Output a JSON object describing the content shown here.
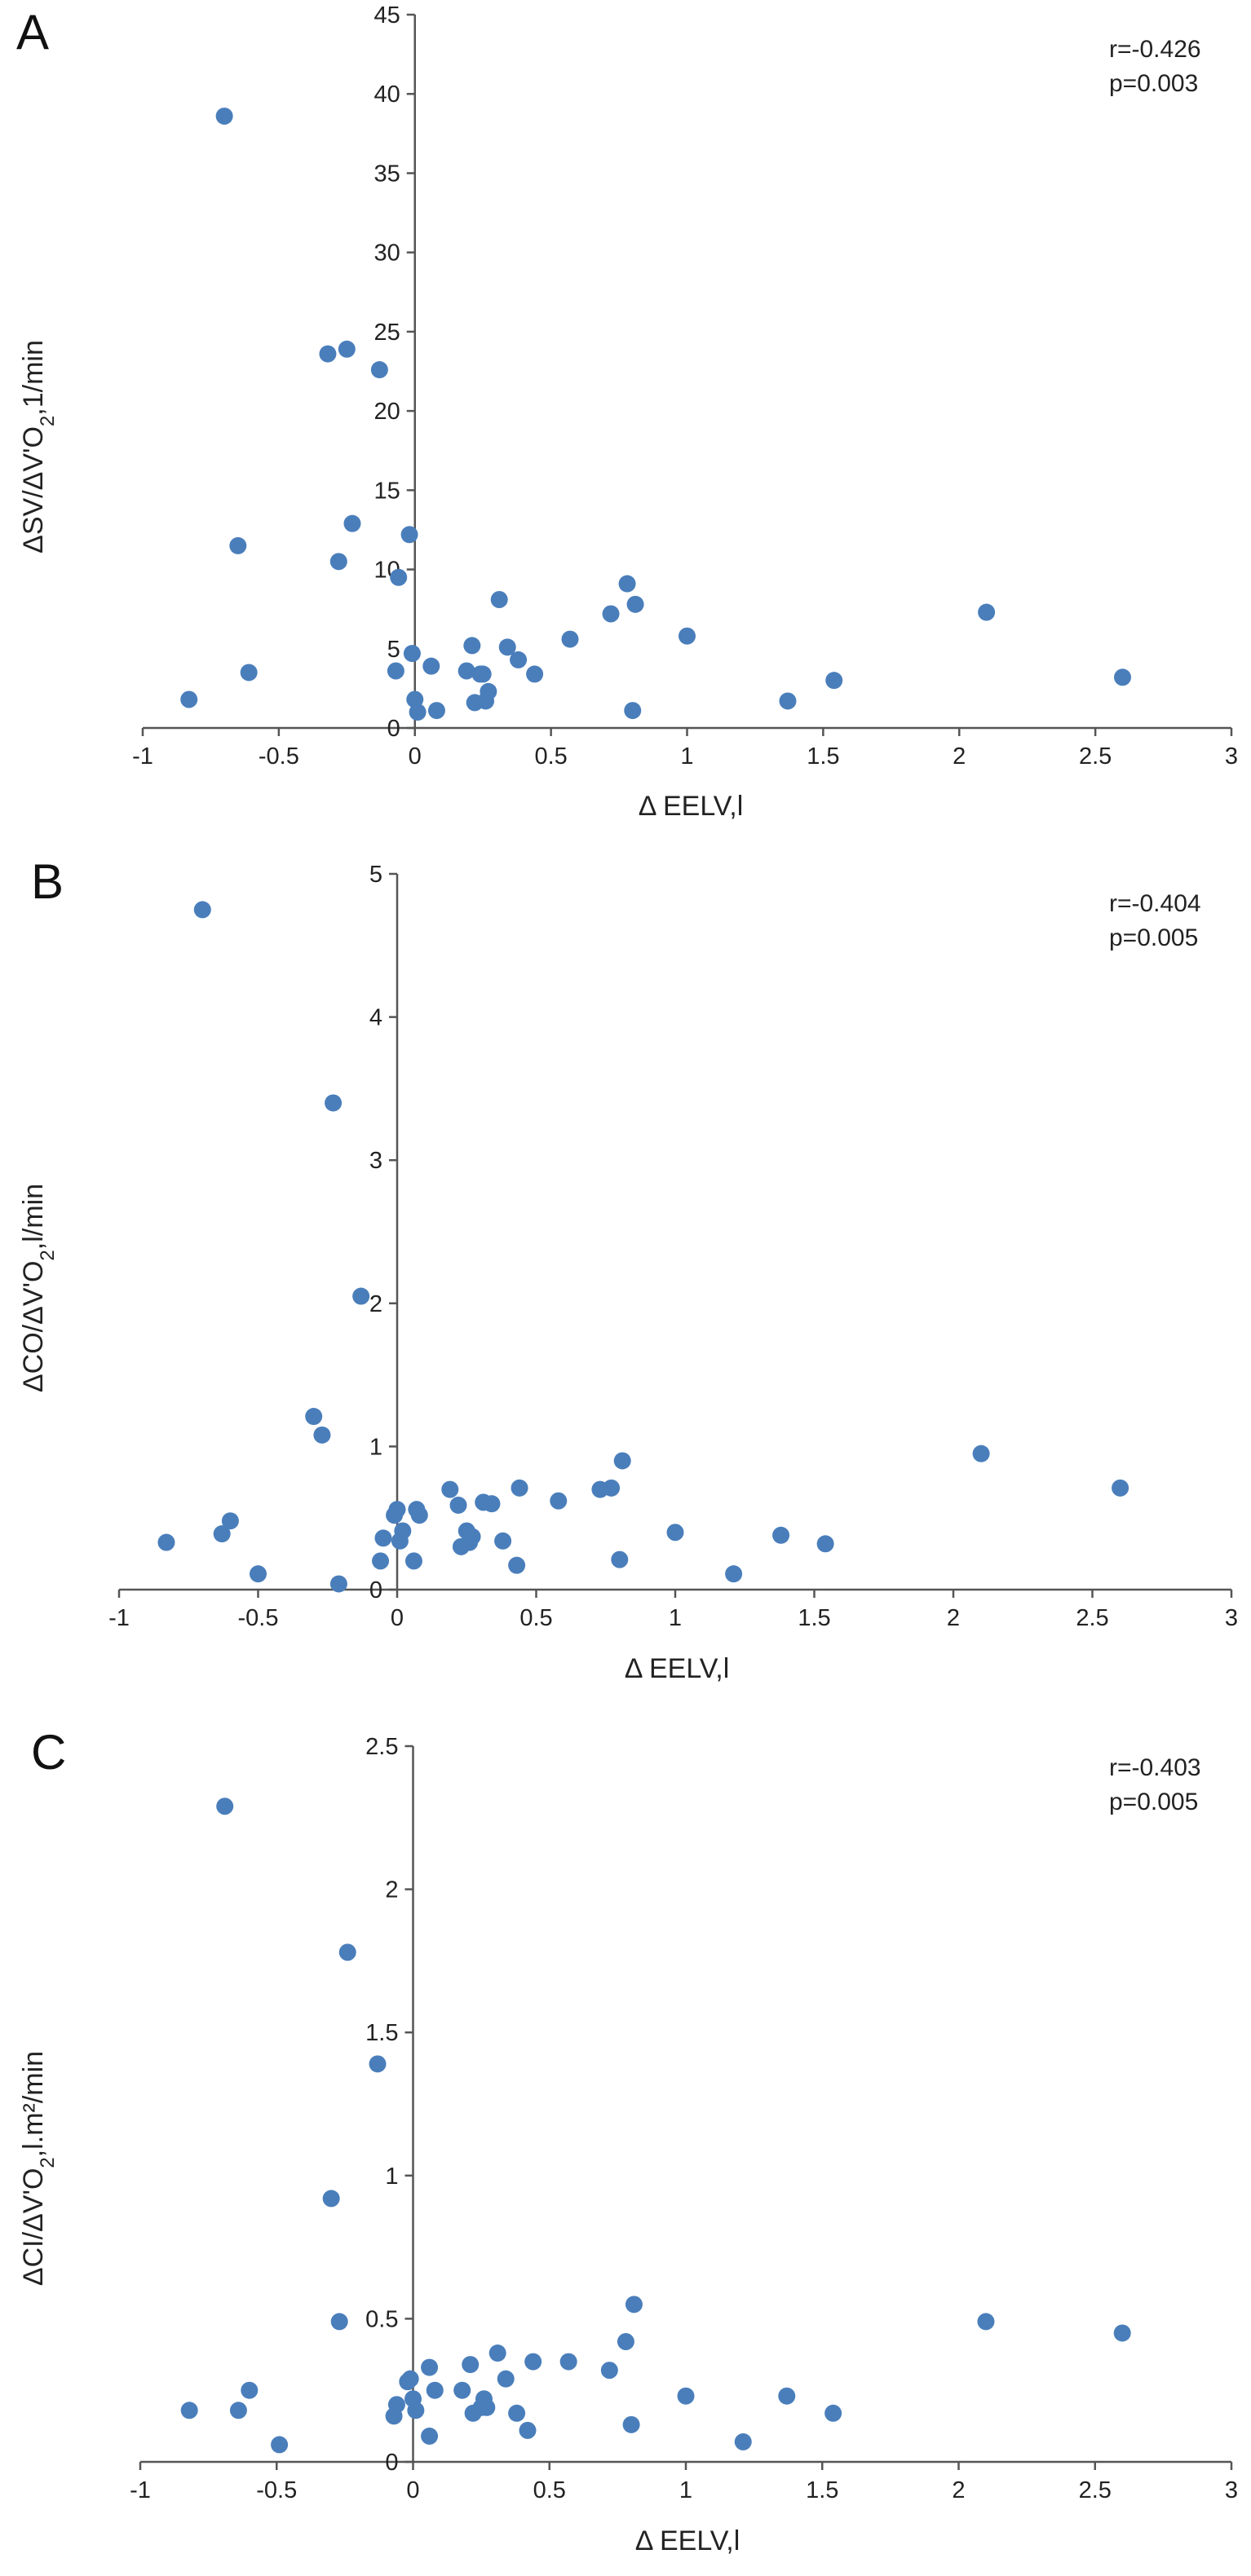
{
  "colors": {
    "marker": "#4a7ebb",
    "axis": "#555555",
    "text": "#222222"
  },
  "chart_data": [
    {
      "type": "scatter",
      "panel_label": "A",
      "xlabel": "Δ EELV,l",
      "ylabel_main": "ΔSV/ΔV'O",
      "ylabel_sub": "2",
      "ylabel_tail": ",1/min",
      "annotation_r": "r=-0.426",
      "annotation_p": "p=0.003",
      "xlim": [
        -1,
        3
      ],
      "ylim": [
        0,
        45
      ],
      "xticks": [
        "-1",
        "-0.5",
        "0",
        "0.5",
        "1",
        "1.5",
        "2",
        "2.5",
        "3"
      ],
      "yticks": [
        "0",
        "5",
        "10",
        "15",
        "20",
        "25",
        "30",
        "35",
        "40",
        "45"
      ],
      "points": [
        [
          -0.83,
          1.8
        ],
        [
          -0.7,
          38.6
        ],
        [
          -0.65,
          11.5
        ],
        [
          -0.61,
          3.5
        ],
        [
          -0.32,
          23.6
        ],
        [
          -0.25,
          23.9
        ],
        [
          -0.28,
          10.5
        ],
        [
          -0.23,
          12.9
        ],
        [
          -0.13,
          22.6
        ],
        [
          -0.07,
          3.6
        ],
        [
          -0.06,
          9.5
        ],
        [
          -0.02,
          12.2
        ],
        [
          -0.01,
          4.7
        ],
        [
          0.0,
          1.8
        ],
        [
          0.01,
          1.0
        ],
        [
          0.06,
          3.9
        ],
        [
          0.08,
          1.1
        ],
        [
          0.19,
          3.6
        ],
        [
          0.21,
          5.2
        ],
        [
          0.22,
          1.6
        ],
        [
          0.24,
          3.4
        ],
        [
          0.25,
          3.4
        ],
        [
          0.26,
          1.7
        ],
        [
          0.27,
          2.3
        ],
        [
          0.31,
          8.1
        ],
        [
          0.34,
          5.1
        ],
        [
          0.38,
          4.3
        ],
        [
          0.44,
          3.4
        ],
        [
          0.57,
          5.6
        ],
        [
          0.72,
          7.2
        ],
        [
          0.78,
          9.1
        ],
        [
          0.8,
          1.1
        ],
        [
          0.81,
          7.8
        ],
        [
          1.0,
          5.8
        ],
        [
          1.37,
          1.7
        ],
        [
          1.54,
          3.0
        ],
        [
          2.1,
          7.3
        ],
        [
          2.6,
          3.2
        ]
      ]
    },
    {
      "type": "scatter",
      "panel_label": "B",
      "xlabel": "Δ EELV,l",
      "ylabel_main": "ΔCO/ΔV'O",
      "ylabel_sub": "2",
      "ylabel_tail": ",l/min",
      "annotation_r": "r=-0.404",
      "annotation_p": "p=0.005",
      "xlim": [
        -1,
        3
      ],
      "ylim": [
        0,
        5
      ],
      "xticks": [
        "-1",
        "-0.5",
        "0",
        "0.5",
        "1",
        "1.5",
        "2",
        "2.5",
        "3"
      ],
      "yticks": [
        "0",
        "1",
        "2",
        "3",
        "4",
        "5"
      ],
      "points": [
        [
          -0.83,
          0.33
        ],
        [
          -0.7,
          4.75
        ],
        [
          -0.63,
          0.39
        ],
        [
          -0.6,
          0.48
        ],
        [
          -0.5,
          0.11
        ],
        [
          -0.3,
          1.21
        ],
        [
          -0.27,
          1.08
        ],
        [
          -0.23,
          3.4
        ],
        [
          -0.21,
          0.04
        ],
        [
          -0.13,
          2.05
        ],
        [
          -0.06,
          0.2
        ],
        [
          -0.05,
          0.36
        ],
        [
          -0.01,
          0.52
        ],
        [
          0.0,
          0.56
        ],
        [
          0.01,
          0.34
        ],
        [
          0.02,
          0.41
        ],
        [
          0.06,
          0.2
        ],
        [
          0.07,
          0.56
        ],
        [
          0.08,
          0.52
        ],
        [
          0.19,
          0.7
        ],
        [
          0.22,
          0.59
        ],
        [
          0.23,
          0.3
        ],
        [
          0.25,
          0.41
        ],
        [
          0.26,
          0.33
        ],
        [
          0.27,
          0.37
        ],
        [
          0.31,
          0.61
        ],
        [
          0.34,
          0.6
        ],
        [
          0.38,
          0.34
        ],
        [
          0.43,
          0.17
        ],
        [
          0.44,
          0.71
        ],
        [
          0.58,
          0.62
        ],
        [
          0.73,
          0.7
        ],
        [
          0.77,
          0.71
        ],
        [
          0.8,
          0.21
        ],
        [
          0.81,
          0.9
        ],
        [
          1.0,
          0.4
        ],
        [
          1.21,
          0.11
        ],
        [
          1.38,
          0.38
        ],
        [
          1.54,
          0.32
        ],
        [
          2.1,
          0.95
        ],
        [
          2.6,
          0.71
        ]
      ]
    },
    {
      "type": "scatter",
      "panel_label": "C",
      "xlabel": "Δ EELV,l",
      "ylabel_main": "ΔCI/ΔV'O",
      "ylabel_sub": "2",
      "ylabel_tail": ",l.m²/min",
      "annotation_r": "r=-0.403",
      "annotation_p": "p=0.005",
      "xlim": [
        -1,
        3
      ],
      "ylim": [
        0,
        2.5
      ],
      "xticks": [
        "-1",
        "-0.5",
        "0",
        "0.5",
        "1",
        "1.5",
        "2",
        "2.5",
        "3"
      ],
      "yticks": [
        "0",
        "0.5",
        "1",
        "1.5",
        "2",
        "2.5"
      ],
      "points": [
        [
          -0.82,
          0.18
        ],
        [
          -0.69,
          2.29
        ],
        [
          -0.64,
          0.18
        ],
        [
          -0.6,
          0.25
        ],
        [
          -0.49,
          0.06
        ],
        [
          -0.3,
          0.92
        ],
        [
          -0.27,
          0.49
        ],
        [
          -0.24,
          1.78
        ],
        [
          -0.13,
          1.39
        ],
        [
          -0.07,
          0.16
        ],
        [
          -0.06,
          0.2
        ],
        [
          -0.02,
          0.28
        ],
        [
          -0.01,
          0.29
        ],
        [
          0.0,
          0.22
        ],
        [
          0.01,
          0.18
        ],
        [
          0.06,
          0.33
        ],
        [
          0.06,
          0.09
        ],
        [
          0.08,
          0.25
        ],
        [
          0.18,
          0.25
        ],
        [
          0.21,
          0.34
        ],
        [
          0.22,
          0.17
        ],
        [
          0.25,
          0.19
        ],
        [
          0.26,
          0.22
        ],
        [
          0.27,
          0.19
        ],
        [
          0.31,
          0.38
        ],
        [
          0.34,
          0.29
        ],
        [
          0.38,
          0.17
        ],
        [
          0.42,
          0.11
        ],
        [
          0.44,
          0.35
        ],
        [
          0.57,
          0.35
        ],
        [
          0.72,
          0.32
        ],
        [
          0.78,
          0.42
        ],
        [
          0.8,
          0.13
        ],
        [
          0.81,
          0.55
        ],
        [
          1.0,
          0.23
        ],
        [
          1.21,
          0.07
        ],
        [
          1.37,
          0.23
        ],
        [
          1.54,
          0.17
        ],
        [
          2.1,
          0.49
        ],
        [
          2.6,
          0.45
        ]
      ]
    }
  ]
}
